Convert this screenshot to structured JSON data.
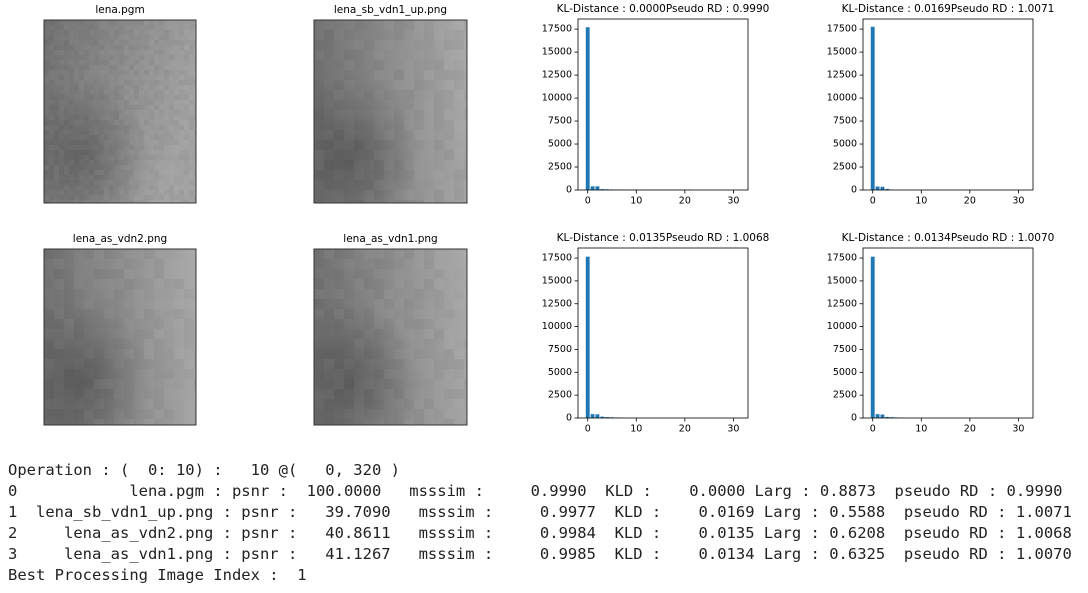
{
  "images": [
    {
      "title": "lena.pgm"
    },
    {
      "title": "lena_sb_vdn1_up.png"
    },
    {
      "title": "lena_as_vdn2.png"
    },
    {
      "title": "lena_as_vdn1.png"
    }
  ],
  "chart_data": [
    {
      "type": "bar",
      "title": "KL-Distance : 0.0000Pseudo RD : 0.9990",
      "color": "#1f77b4",
      "x": [
        0,
        1,
        2,
        3,
        4,
        5,
        6,
        7,
        8,
        9,
        10,
        11,
        12,
        13,
        14,
        15,
        16,
        17,
        18,
        19,
        20,
        21
      ],
      "values": [
        17700,
        400,
        400,
        100,
        80,
        60,
        50,
        50,
        40,
        40,
        40,
        40,
        30,
        30,
        30,
        30,
        30,
        30,
        30,
        30,
        30,
        40
      ],
      "xlim": [
        -2,
        33
      ],
      "xticks": [
        0,
        10,
        20,
        30
      ],
      "ylim": [
        0,
        18600
      ],
      "yticks": [
        0,
        2500,
        5000,
        7500,
        10000,
        12500,
        15000,
        17500
      ]
    },
    {
      "type": "bar",
      "title": "KL-Distance : 0.0169Pseudo RD : 1.0071",
      "color": "#1f77b4",
      "x": [
        0,
        1,
        2,
        3,
        4
      ],
      "values": [
        17750,
        380,
        350,
        120,
        40
      ],
      "xlim": [
        -2,
        33
      ],
      "xticks": [
        0,
        10,
        20,
        30
      ],
      "ylim": [
        0,
        18600
      ],
      "yticks": [
        0,
        2500,
        5000,
        7500,
        10000,
        12500,
        15000,
        17500
      ]
    },
    {
      "type": "bar",
      "title": "KL-Distance : 0.0135Pseudo RD : 1.0068",
      "color": "#1f77b4",
      "x": [
        0,
        1,
        2,
        3,
        4,
        5,
        6,
        7
      ],
      "values": [
        17650,
        420,
        400,
        150,
        100,
        80,
        60,
        40
      ],
      "xlim": [
        -2,
        33
      ],
      "xticks": [
        0,
        10,
        20,
        30
      ],
      "ylim": [
        0,
        18600
      ],
      "yticks": [
        0,
        2500,
        5000,
        7500,
        10000,
        12500,
        15000,
        17500
      ]
    },
    {
      "type": "bar",
      "title": "KL-Distance : 0.0134Pseudo RD : 1.0070",
      "color": "#1f77b4",
      "x": [
        0,
        1,
        2,
        3,
        4,
        5,
        6
      ],
      "values": [
        17650,
        420,
        380,
        120,
        90,
        60,
        30
      ],
      "xlim": [
        -2,
        33
      ],
      "xticks": [
        0,
        10,
        20,
        30
      ],
      "ylim": [
        0,
        18600
      ],
      "yticks": [
        0,
        2500,
        5000,
        7500,
        10000,
        12500,
        15000,
        17500
      ]
    }
  ],
  "console": {
    "lines": [
      "Operation : (  0: 10) :   10 @(   0, 320 )",
      "0            lena.pgm : psnr :  100.0000   msssim :     0.9990  KLD :    0.0000 Larg : 0.8873  pseudo RD : 0.9990",
      "1  lena_sb_vdn1_up.png : psnr :   39.7090   msssim :     0.9977  KLD :    0.0169 Larg : 0.5588  pseudo RD : 1.0071",
      "2     lena_as_vdn2.png : psnr :   40.8611   msssim :     0.9984  KLD :    0.0135 Larg : 0.6208  pseudo RD : 1.0068",
      "3     lena_as_vdn1.png : psnr :   41.1267   msssim :     0.9985  KLD :    0.0134 Larg : 0.6325  pseudo RD : 1.0070",
      "Best Processing Image Index :  1"
    ]
  }
}
